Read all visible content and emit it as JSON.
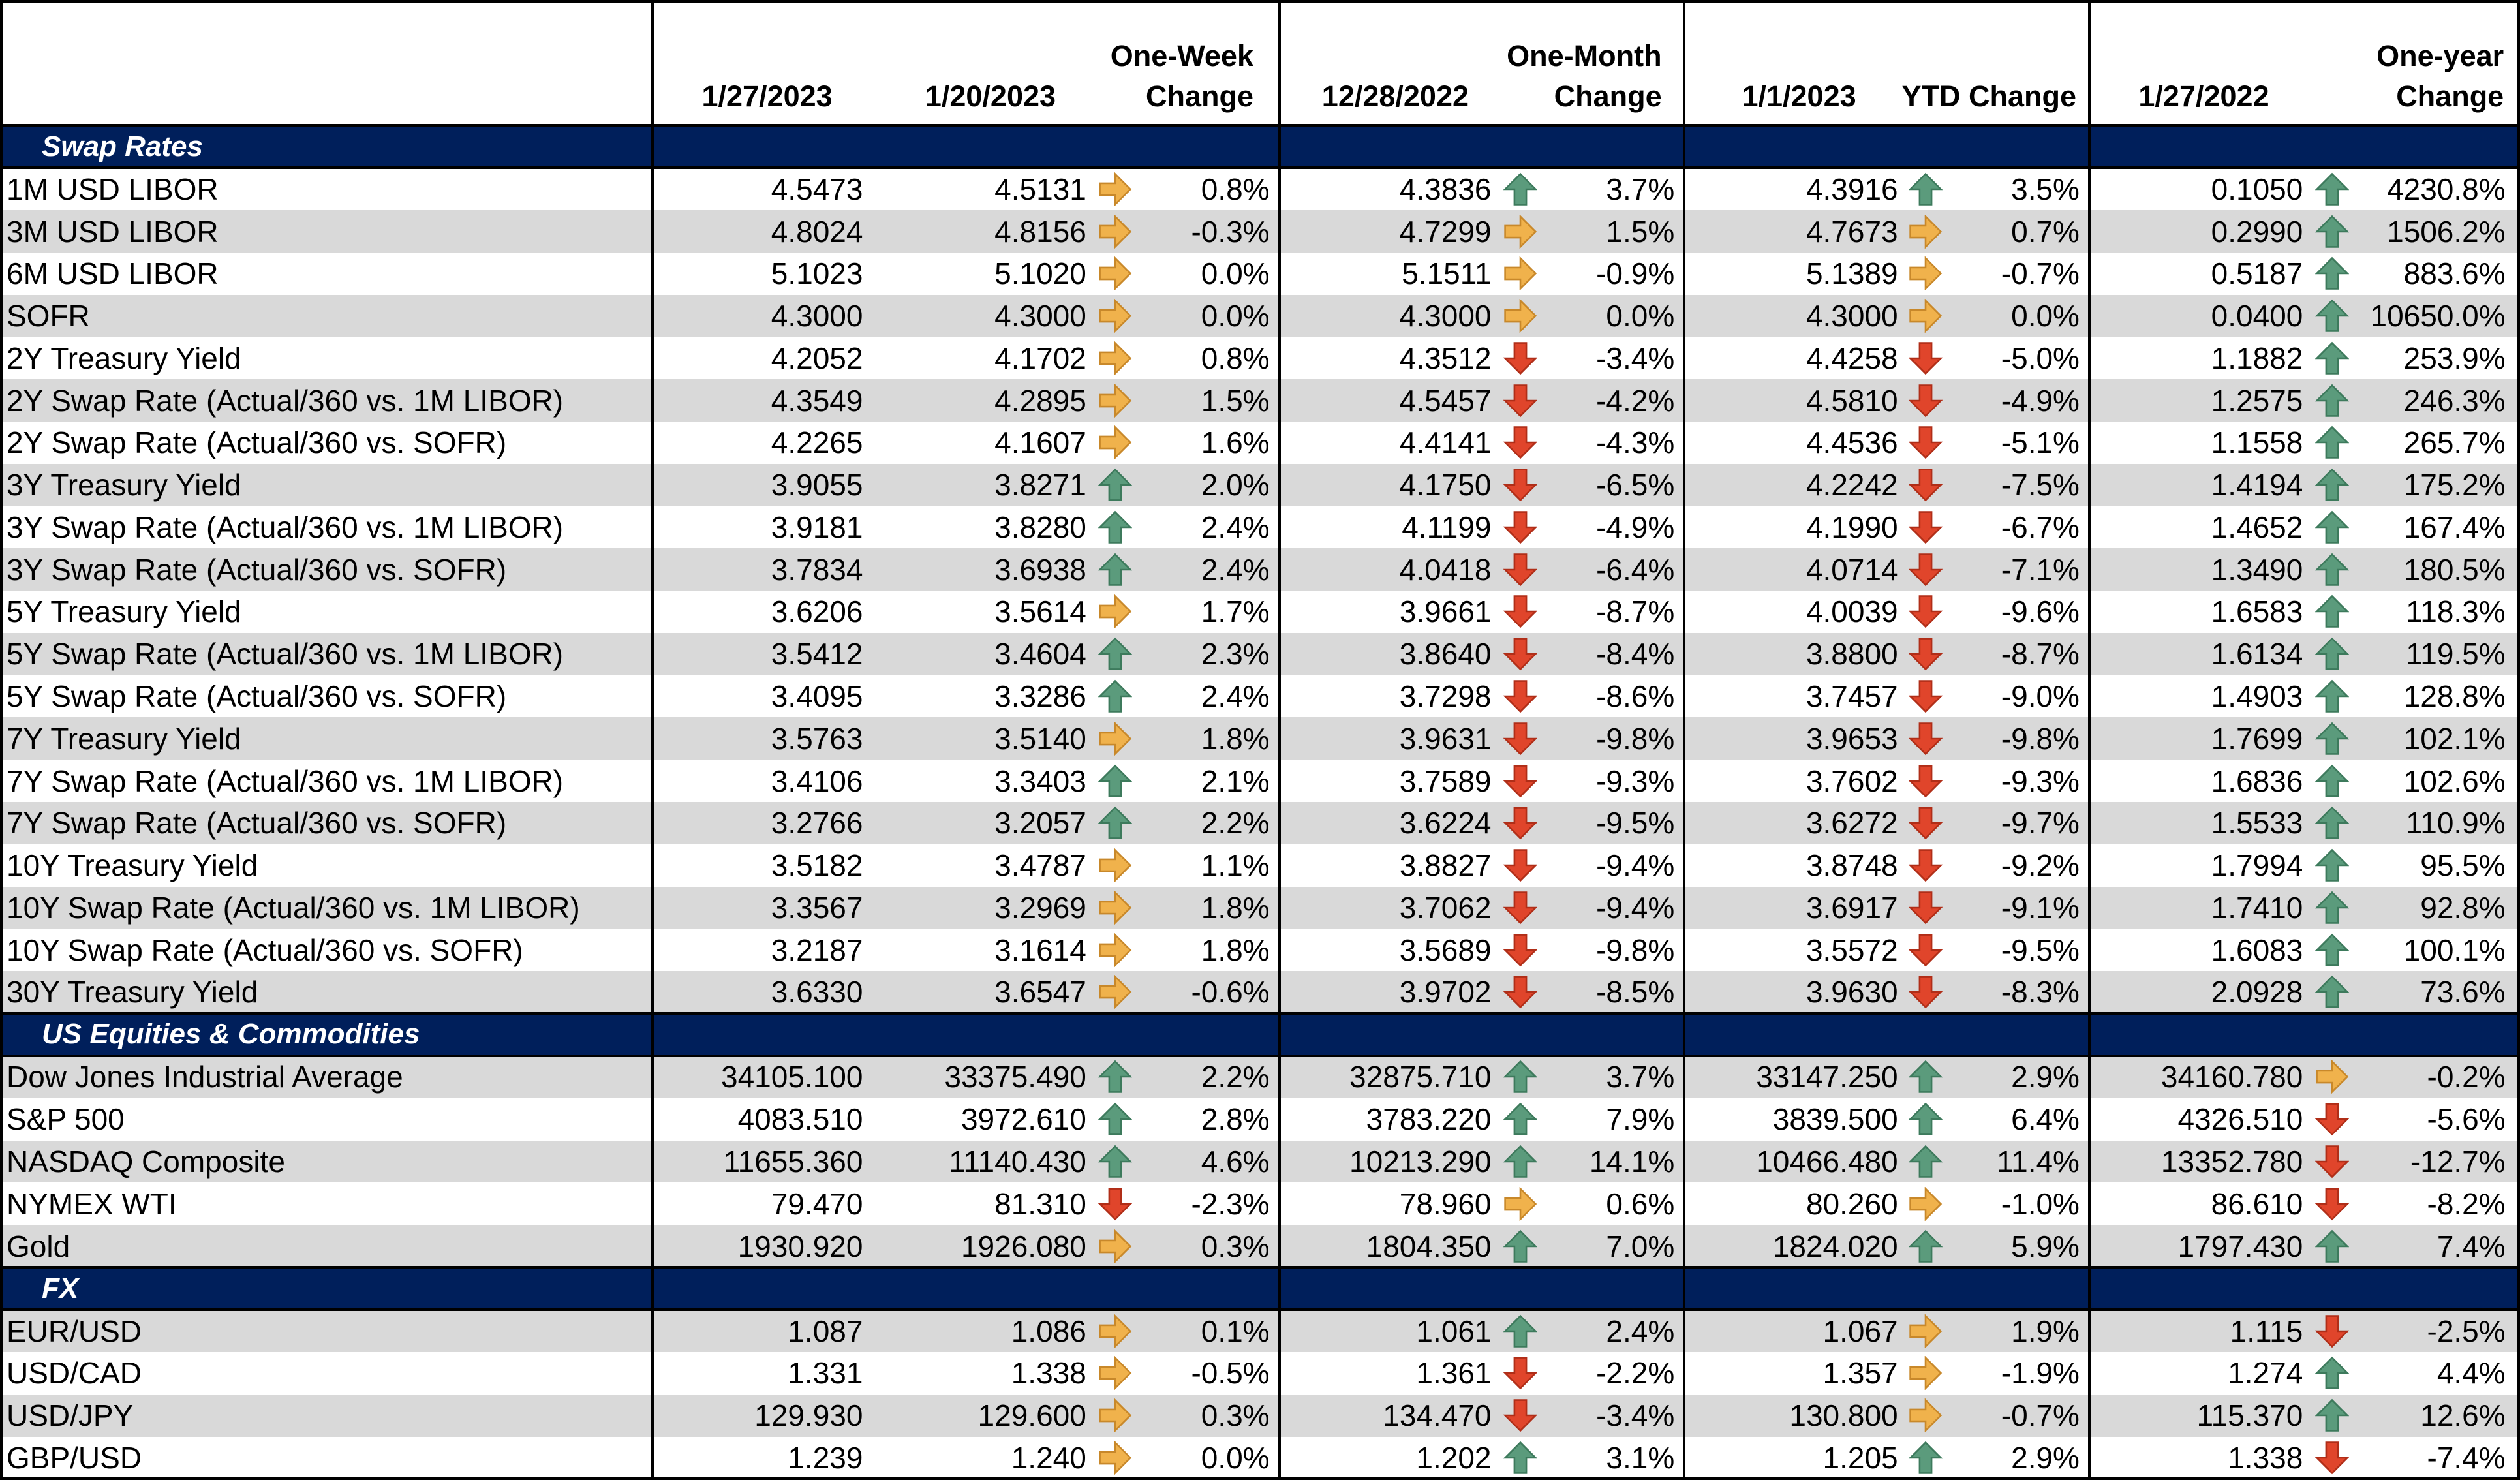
{
  "header": {
    "cols": [
      {
        "key": "c1",
        "lines": [
          "1/27/2023"
        ]
      },
      {
        "key": "c2",
        "lines": [
          "1/20/2023"
        ]
      },
      {
        "key": "c3",
        "lines": [
          "One-Week",
          "Change"
        ]
      },
      {
        "key": "c4",
        "lines": [
          "12/28/2022"
        ]
      },
      {
        "key": "c5",
        "lines": [
          "One-Month",
          "Change"
        ]
      },
      {
        "key": "c6",
        "lines": [
          "1/1/2023"
        ]
      },
      {
        "key": "c7",
        "lines": [
          "YTD Change"
        ]
      },
      {
        "key": "c8",
        "lines": [
          "1/27/2022"
        ]
      },
      {
        "key": "c9",
        "lines": [
          "One-year",
          "Change"
        ]
      }
    ]
  },
  "sections": [
    {
      "title": "Swap Rates",
      "rows": [
        {
          "label": "1M USD LIBOR",
          "v0": "4.5473",
          "v1": "4.5131",
          "a1": "right",
          "c1": "0.8%",
          "v2": "4.3836",
          "a2": "up",
          "c2": "3.7%",
          "v3": "4.3916",
          "a3": "up",
          "c3": "3.5%",
          "v4": "0.1050",
          "a4": "up",
          "c4": "4230.8%"
        },
        {
          "label": "3M USD LIBOR",
          "v0": "4.8024",
          "v1": "4.8156",
          "a1": "right",
          "c1": "-0.3%",
          "v2": "4.7299",
          "a2": "right",
          "c2": "1.5%",
          "v3": "4.7673",
          "a3": "right",
          "c3": "0.7%",
          "v4": "0.2990",
          "a4": "up",
          "c4": "1506.2%"
        },
        {
          "label": "6M USD LIBOR",
          "v0": "5.1023",
          "v1": "5.1020",
          "a1": "right",
          "c1": "0.0%",
          "v2": "5.1511",
          "a2": "right",
          "c2": "-0.9%",
          "v3": "5.1389",
          "a3": "right",
          "c3": "-0.7%",
          "v4": "0.5187",
          "a4": "up",
          "c4": "883.6%"
        },
        {
          "label": "SOFR",
          "v0": "4.3000",
          "v1": "4.3000",
          "a1": "right",
          "c1": "0.0%",
          "v2": "4.3000",
          "a2": "right",
          "c2": "0.0%",
          "v3": "4.3000",
          "a3": "right",
          "c3": "0.0%",
          "v4": "0.0400",
          "a4": "up",
          "c4": "10650.0%"
        },
        {
          "label": "2Y Treasury Yield",
          "v0": "4.2052",
          "v1": "4.1702",
          "a1": "right",
          "c1": "0.8%",
          "v2": "4.3512",
          "a2": "down",
          "c2": "-3.4%",
          "v3": "4.4258",
          "a3": "down",
          "c3": "-5.0%",
          "v4": "1.1882",
          "a4": "up",
          "c4": "253.9%"
        },
        {
          "label": "2Y Swap Rate (Actual/360 vs. 1M LIBOR)",
          "v0": "4.3549",
          "v1": "4.2895",
          "a1": "right",
          "c1": "1.5%",
          "v2": "4.5457",
          "a2": "down",
          "c2": "-4.2%",
          "v3": "4.5810",
          "a3": "down",
          "c3": "-4.9%",
          "v4": "1.2575",
          "a4": "up",
          "c4": "246.3%"
        },
        {
          "label": "2Y Swap Rate (Actual/360 vs. SOFR)",
          "v0": "4.2265",
          "v1": "4.1607",
          "a1": "right",
          "c1": "1.6%",
          "v2": "4.4141",
          "a2": "down",
          "c2": "-4.3%",
          "v3": "4.4536",
          "a3": "down",
          "c3": "-5.1%",
          "v4": "1.1558",
          "a4": "up",
          "c4": "265.7%"
        },
        {
          "label": "3Y Treasury Yield",
          "v0": "3.9055",
          "v1": "3.8271",
          "a1": "up",
          "c1": "2.0%",
          "v2": "4.1750",
          "a2": "down",
          "c2": "-6.5%",
          "v3": "4.2242",
          "a3": "down",
          "c3": "-7.5%",
          "v4": "1.4194",
          "a4": "up",
          "c4": "175.2%"
        },
        {
          "label": "3Y Swap Rate (Actual/360 vs. 1M LIBOR)",
          "v0": "3.9181",
          "v1": "3.8280",
          "a1": "up",
          "c1": "2.4%",
          "v2": "4.1199",
          "a2": "down",
          "c2": "-4.9%",
          "v3": "4.1990",
          "a3": "down",
          "c3": "-6.7%",
          "v4": "1.4652",
          "a4": "up",
          "c4": "167.4%"
        },
        {
          "label": "3Y Swap Rate (Actual/360 vs. SOFR)",
          "v0": "3.7834",
          "v1": "3.6938",
          "a1": "up",
          "c1": "2.4%",
          "v2": "4.0418",
          "a2": "down",
          "c2": "-6.4%",
          "v3": "4.0714",
          "a3": "down",
          "c3": "-7.1%",
          "v4": "1.3490",
          "a4": "up",
          "c4": "180.5%"
        },
        {
          "label": "5Y Treasury Yield",
          "v0": "3.6206",
          "v1": "3.5614",
          "a1": "right",
          "c1": "1.7%",
          "v2": "3.9661",
          "a2": "down",
          "c2": "-8.7%",
          "v3": "4.0039",
          "a3": "down",
          "c3": "-9.6%",
          "v4": "1.6583",
          "a4": "up",
          "c4": "118.3%"
        },
        {
          "label": "5Y Swap Rate (Actual/360 vs. 1M LIBOR)",
          "v0": "3.5412",
          "v1": "3.4604",
          "a1": "up",
          "c1": "2.3%",
          "v2": "3.8640",
          "a2": "down",
          "c2": "-8.4%",
          "v3": "3.8800",
          "a3": "down",
          "c3": "-8.7%",
          "v4": "1.6134",
          "a4": "up",
          "c4": "119.5%"
        },
        {
          "label": "5Y Swap Rate (Actual/360 vs. SOFR)",
          "v0": "3.4095",
          "v1": "3.3286",
          "a1": "up",
          "c1": "2.4%",
          "v2": "3.7298",
          "a2": "down",
          "c2": "-8.6%",
          "v3": "3.7457",
          "a3": "down",
          "c3": "-9.0%",
          "v4": "1.4903",
          "a4": "up",
          "c4": "128.8%"
        },
        {
          "label": "7Y Treasury Yield",
          "v0": "3.5763",
          "v1": "3.5140",
          "a1": "right",
          "c1": "1.8%",
          "v2": "3.9631",
          "a2": "down",
          "c2": "-9.8%",
          "v3": "3.9653",
          "a3": "down",
          "c3": "-9.8%",
          "v4": "1.7699",
          "a4": "up",
          "c4": "102.1%"
        },
        {
          "label": "7Y Swap Rate (Actual/360 vs. 1M LIBOR)",
          "v0": "3.4106",
          "v1": "3.3403",
          "a1": "up",
          "c1": "2.1%",
          "v2": "3.7589",
          "a2": "down",
          "c2": "-9.3%",
          "v3": "3.7602",
          "a3": "down",
          "c3": "-9.3%",
          "v4": "1.6836",
          "a4": "up",
          "c4": "102.6%"
        },
        {
          "label": "7Y Swap Rate (Actual/360 vs. SOFR)",
          "v0": "3.2766",
          "v1": "3.2057",
          "a1": "up",
          "c1": "2.2%",
          "v2": "3.6224",
          "a2": "down",
          "c2": "-9.5%",
          "v3": "3.6272",
          "a3": "down",
          "c3": "-9.7%",
          "v4": "1.5533",
          "a4": "up",
          "c4": "110.9%"
        },
        {
          "label": "10Y Treasury Yield",
          "v0": "3.5182",
          "v1": "3.4787",
          "a1": "right",
          "c1": "1.1%",
          "v2": "3.8827",
          "a2": "down",
          "c2": "-9.4%",
          "v3": "3.8748",
          "a3": "down",
          "c3": "-9.2%",
          "v4": "1.7994",
          "a4": "up",
          "c4": "95.5%"
        },
        {
          "label": "10Y Swap Rate (Actual/360 vs. 1M LIBOR)",
          "v0": "3.3567",
          "v1": "3.2969",
          "a1": "right",
          "c1": "1.8%",
          "v2": "3.7062",
          "a2": "down",
          "c2": "-9.4%",
          "v3": "3.6917",
          "a3": "down",
          "c3": "-9.1%",
          "v4": "1.7410",
          "a4": "up",
          "c4": "92.8%"
        },
        {
          "label": "10Y Swap Rate (Actual/360 vs. SOFR)",
          "v0": "3.2187",
          "v1": "3.1614",
          "a1": "right",
          "c1": "1.8%",
          "v2": "3.5689",
          "a2": "down",
          "c2": "-9.8%",
          "v3": "3.5572",
          "a3": "down",
          "c3": "-9.5%",
          "v4": "1.6083",
          "a4": "up",
          "c4": "100.1%"
        },
        {
          "label": "30Y Treasury Yield",
          "v0": "3.6330",
          "v1": "3.6547",
          "a1": "right",
          "c1": "-0.6%",
          "v2": "3.9702",
          "a2": "down",
          "c2": "-8.5%",
          "v3": "3.9630",
          "a3": "down",
          "c3": "-8.3%",
          "v4": "2.0928",
          "a4": "up",
          "c4": "73.6%"
        }
      ]
    },
    {
      "title": "US Equities & Commodities",
      "rows": [
        {
          "label": "Dow Jones Industrial Average",
          "v0": "34105.100",
          "v1": "33375.490",
          "a1": "up",
          "c1": "2.2%",
          "v2": "32875.710",
          "a2": "up",
          "c2": "3.7%",
          "v3": "33147.250",
          "a3": "up",
          "c3": "2.9%",
          "v4": "34160.780",
          "a4": "right",
          "c4": "-0.2%"
        },
        {
          "label": "S&P 500",
          "v0": "4083.510",
          "v1": "3972.610",
          "a1": "up",
          "c1": "2.8%",
          "v2": "3783.220",
          "a2": "up",
          "c2": "7.9%",
          "v3": "3839.500",
          "a3": "up",
          "c3": "6.4%",
          "v4": "4326.510",
          "a4": "down",
          "c4": "-5.6%"
        },
        {
          "label": "NASDAQ Composite",
          "v0": "11655.360",
          "v1": "11140.430",
          "a1": "up",
          "c1": "4.6%",
          "v2": "10213.290",
          "a2": "up",
          "c2": "14.1%",
          "v3": "10466.480",
          "a3": "up",
          "c3": "11.4%",
          "v4": "13352.780",
          "a4": "down",
          "c4": "-12.7%"
        },
        {
          "label": "NYMEX WTI",
          "v0": "79.470",
          "v1": "81.310",
          "a1": "down",
          "c1": "-2.3%",
          "v2": "78.960",
          "a2": "right",
          "c2": "0.6%",
          "v3": "80.260",
          "a3": "right",
          "c3": "-1.0%",
          "v4": "86.610",
          "a4": "down",
          "c4": "-8.2%"
        },
        {
          "label": "Gold",
          "v0": "1930.920",
          "v1": "1926.080",
          "a1": "right",
          "c1": "0.3%",
          "v2": "1804.350",
          "a2": "up",
          "c2": "7.0%",
          "v3": "1824.020",
          "a3": "up",
          "c3": "5.9%",
          "v4": "1797.430",
          "a4": "up",
          "c4": "7.4%"
        }
      ]
    },
    {
      "title": "FX",
      "rows": [
        {
          "label": "EUR/USD",
          "v0": "1.087",
          "v1": "1.086",
          "a1": "right",
          "c1": "0.1%",
          "v2": "1.061",
          "a2": "up",
          "c2": "2.4%",
          "v3": "1.067",
          "a3": "right",
          "c3": "1.9%",
          "v4": "1.115",
          "a4": "down",
          "c4": "-2.5%"
        },
        {
          "label": "USD/CAD",
          "v0": "1.331",
          "v1": "1.338",
          "a1": "right",
          "c1": "-0.5%",
          "v2": "1.361",
          "a2": "down",
          "c2": "-2.2%",
          "v3": "1.357",
          "a3": "right",
          "c3": "-1.9%",
          "v4": "1.274",
          "a4": "up",
          "c4": "4.4%"
        },
        {
          "label": "USD/JPY",
          "v0": "129.930",
          "v1": "129.600",
          "a1": "right",
          "c1": "0.3%",
          "v2": "134.470",
          "a2": "down",
          "c2": "-3.4%",
          "v3": "130.800",
          "a3": "right",
          "c3": "-0.7%",
          "v4": "115.370",
          "a4": "up",
          "c4": "12.6%"
        },
        {
          "label": "GBP/USD",
          "v0": "1.239",
          "v1": "1.240",
          "a1": "right",
          "c1": "0.0%",
          "v2": "1.202",
          "a2": "up",
          "c2": "3.1%",
          "v3": "1.205",
          "a3": "up",
          "c3": "2.9%",
          "v4": "1.338",
          "a4": "down",
          "c4": "-7.4%"
        }
      ]
    }
  ],
  "colors": {
    "section_bg": "#001f5b",
    "band_bg": "#d9d9d9",
    "arrow_up": "#5b9b7c",
    "arrow_down": "#e0452b",
    "arrow_right": "#f0b24c"
  },
  "icons": {
    "up": "arrow-up-icon",
    "down": "arrow-down-icon",
    "right": "arrow-right-icon"
  }
}
